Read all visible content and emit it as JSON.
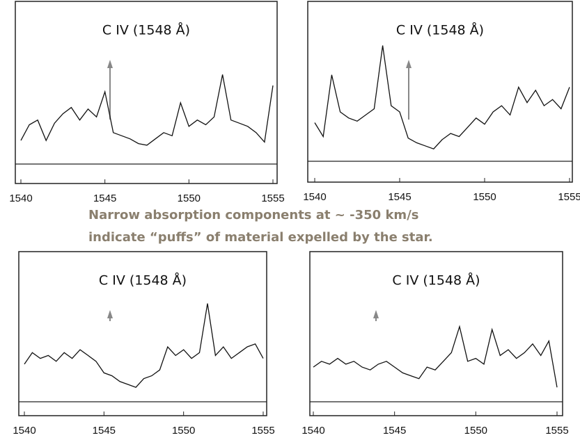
{
  "chart_data": [
    {
      "type": "line",
      "title": "C IV (1548 Å)",
      "xlim": [
        1540,
        1555
      ],
      "xticks": [
        1540,
        1545,
        1550,
        1555
      ],
      "ylim": [
        0,
        10
      ],
      "x": [
        1540,
        1540.5,
        1541,
        1541.5,
        1542,
        1542.5,
        1543,
        1543.5,
        1544,
        1544.5,
        1545,
        1545.5,
        1546,
        1546.5,
        1547,
        1547.5,
        1548,
        1548.5,
        1549,
        1549.5,
        1550,
        1550.5,
        1551,
        1551.5,
        1552,
        1552.5,
        1553,
        1553.5,
        1554,
        1554.5,
        1555
      ],
      "series": [
        {
          "color": "#111111",
          "values": [
            1.5,
            2.5,
            2.8,
            1.5,
            2.6,
            3.2,
            3.6,
            2.8,
            3.5,
            3.0,
            4.6,
            2.0,
            1.8,
            1.6,
            1.3,
            1.2,
            1.6,
            2.0,
            1.8,
            3.9,
            2.4,
            2.8,
            2.5,
            3.0,
            5.7,
            2.8,
            2.6,
            2.4,
            2.0,
            1.4,
            5.0
          ]
        }
      ]
    },
    {
      "type": "line",
      "title": "C IV (1548 Å)",
      "xlim": [
        1540,
        1555
      ],
      "xticks": [
        1540,
        1545,
        1550,
        1555
      ],
      "ylim": [
        0,
        10
      ],
      "x": [
        1540,
        1540.5,
        1541,
        1541.5,
        1542,
        1542.5,
        1543,
        1543.5,
        1544,
        1544.5,
        1545,
        1545.5,
        1546,
        1546.5,
        1547,
        1547.5,
        1548,
        1548.5,
        1549,
        1549.5,
        1550,
        1550.5,
        1551,
        1551.5,
        1552,
        1552.5,
        1553,
        1553.5,
        1554,
        1554.5,
        1555
      ],
      "series": [
        {
          "color": "#111111",
          "values": [
            2.5,
            1.6,
            5.6,
            3.2,
            2.8,
            2.6,
            3.0,
            3.4,
            7.5,
            3.6,
            3.2,
            1.5,
            1.2,
            1.0,
            0.8,
            1.4,
            1.8,
            1.6,
            2.2,
            2.8,
            2.4,
            3.2,
            3.6,
            3.0,
            4.8,
            3.8,
            4.6,
            3.6,
            4.0,
            3.4,
            4.8
          ]
        }
      ]
    },
    {
      "type": "line",
      "title": "C IV (1548 Å)",
      "xlim": [
        1540,
        1555
      ],
      "xticks": [
        1540,
        1545,
        1550,
        1555
      ],
      "ylim": [
        0,
        10
      ],
      "x": [
        1540,
        1540.5,
        1541,
        1541.5,
        1542,
        1542.5,
        1543,
        1543.5,
        1544,
        1544.5,
        1545,
        1545.5,
        1546,
        1546.5,
        1547,
        1547.5,
        1548,
        1548.5,
        1549,
        1549.5,
        1550,
        1550.5,
        1551,
        1551.5,
        1552,
        1552.5,
        1553,
        1553.5,
        1554,
        1554.5,
        1555
      ],
      "series": [
        {
          "color": "#111111",
          "values": [
            2.6,
            3.4,
            3.0,
            3.2,
            2.8,
            3.4,
            3.0,
            3.6,
            3.2,
            2.8,
            2.0,
            1.8,
            1.4,
            1.2,
            1.0,
            1.6,
            1.8,
            2.2,
            3.8,
            3.2,
            3.6,
            3.0,
            3.4,
            6.8,
            3.2,
            3.8,
            3.0,
            3.4,
            3.8,
            4.0,
            3.0
          ]
        }
      ]
    },
    {
      "type": "line",
      "title": "C IV (1548 Å)",
      "xlim": [
        1540,
        1555
      ],
      "xticks": [
        1540,
        1545,
        1550,
        1555
      ],
      "ylim": [
        0,
        10
      ],
      "x": [
        1540,
        1540.5,
        1541,
        1541.5,
        1542,
        1542.5,
        1543,
        1543.5,
        1544,
        1544.5,
        1545,
        1545.5,
        1546,
        1546.5,
        1547,
        1547.5,
        1548,
        1548.5,
        1549,
        1549.5,
        1550,
        1550.5,
        1551,
        1551.5,
        1552,
        1552.5,
        1553,
        1553.5,
        1554,
        1554.5,
        1555
      ],
      "series": [
        {
          "color": "#111111",
          "values": [
            2.4,
            2.8,
            2.6,
            3.0,
            2.6,
            2.8,
            2.4,
            2.2,
            2.6,
            2.8,
            2.4,
            2.0,
            1.8,
            1.6,
            2.4,
            2.2,
            2.8,
            3.4,
            5.2,
            2.8,
            3.0,
            2.6,
            5.0,
            3.2,
            3.6,
            3.0,
            3.4,
            4.0,
            3.2,
            4.2,
            1.0
          ]
        }
      ]
    }
  ],
  "caption": [
    "Narrow absorption components at ~ -350 km/s",
    "indicate “puffs” of material expelled by the star."
  ]
}
